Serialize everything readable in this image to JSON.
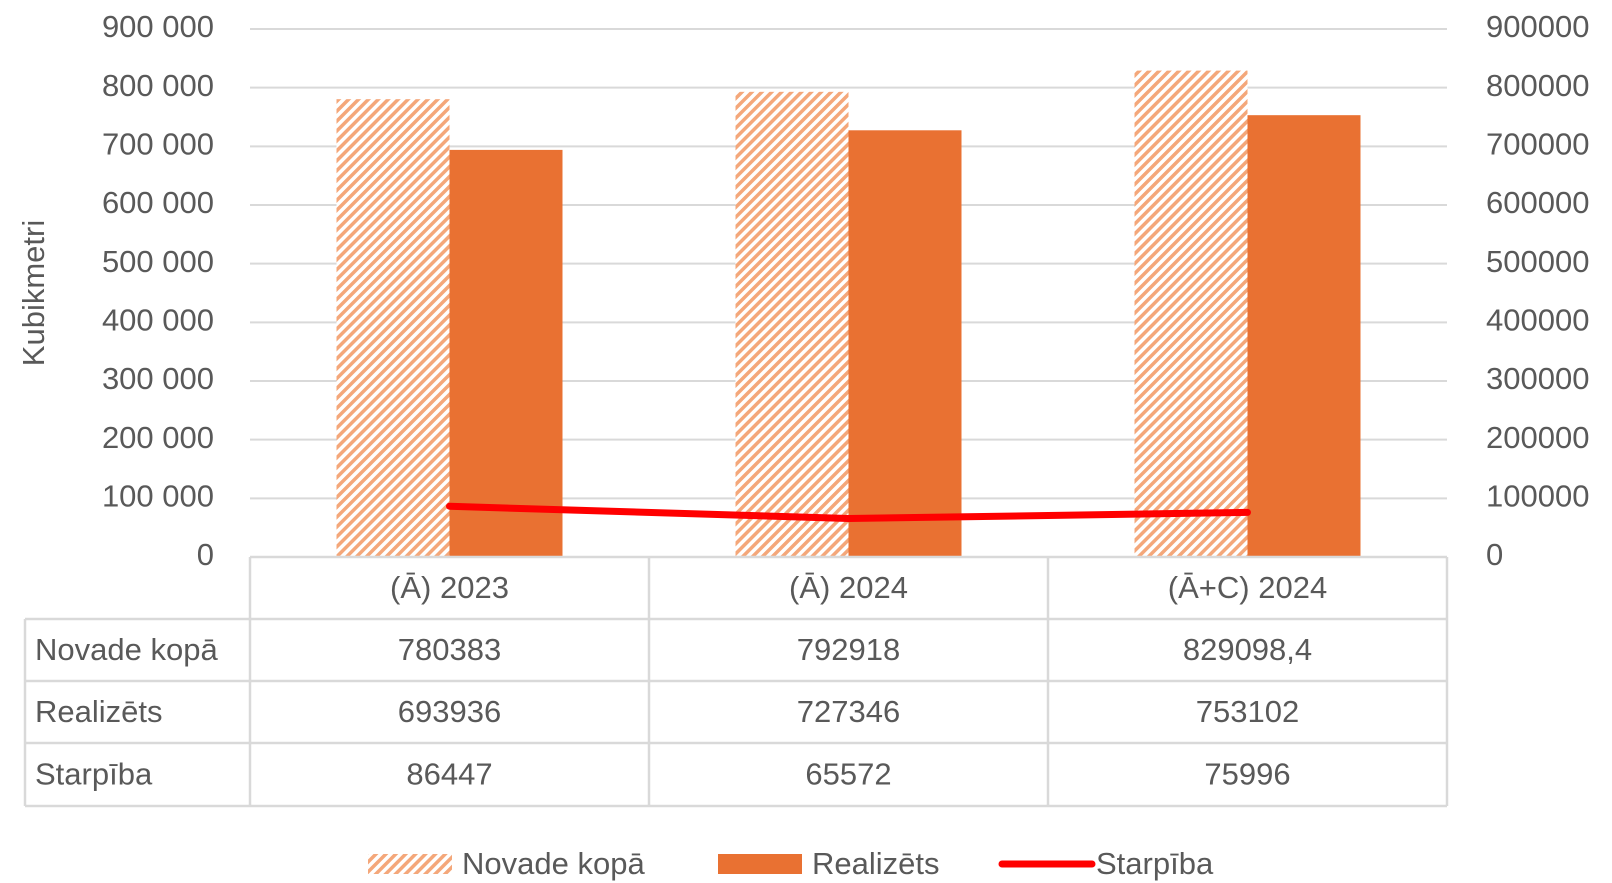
{
  "chart_data": {
    "type": "bar",
    "y_axis_label": "Kubikmetri",
    "categories": [
      "(Ā) 2023",
      "(Ā) 2024",
      "(Ā+C) 2024"
    ],
    "series": [
      {
        "name": "Novade kopā",
        "color": "#f4a77a",
        "pattern": "hatch",
        "values": [
          780383,
          792918,
          829098.4
        ],
        "value_labels": [
          "780383",
          "792918",
          "829098,4"
        ]
      },
      {
        "name": "Realizēts",
        "color": "#e97132",
        "values": [
          693936,
          727346,
          753102
        ]
      },
      {
        "name": "Starpība",
        "type": "line",
        "axis": "y2",
        "color": "#ff0000",
        "values": [
          86447,
          65572,
          75996
        ]
      }
    ],
    "ylim": [
      0,
      900000
    ],
    "yticks": [
      {
        "value": 0,
        "label": "0"
      },
      {
        "value": 100000,
        "label": "100 000"
      },
      {
        "value": 200000,
        "label": "200 000"
      },
      {
        "value": 300000,
        "label": "300 000"
      },
      {
        "value": 400000,
        "label": "400 000"
      },
      {
        "value": 500000,
        "label": "500 000"
      },
      {
        "value": 600000,
        "label": "600 000"
      },
      {
        "value": 700000,
        "label": "700 000"
      },
      {
        "value": 800000,
        "label": "800 000"
      },
      {
        "value": 900000,
        "label": "900 000"
      }
    ],
    "y2lim": [
      0,
      900000
    ],
    "y2ticks": [
      0,
      100000,
      200000,
      300000,
      400000,
      500000,
      600000,
      700000,
      800000,
      900000
    ],
    "grid": true,
    "legend": "bottom",
    "data_table": true
  }
}
